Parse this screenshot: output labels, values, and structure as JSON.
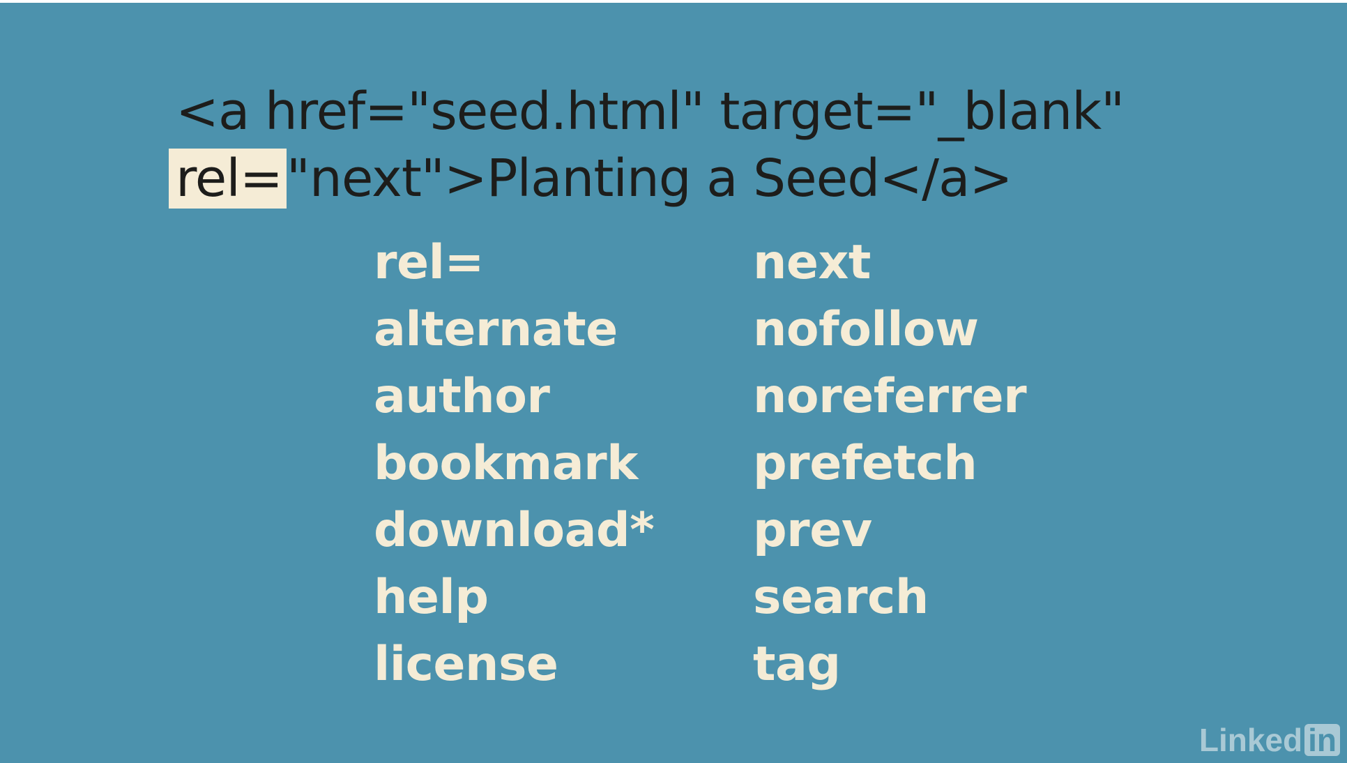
{
  "code": {
    "line1": "<a href=\"seed.html\" target=\"_blank\"",
    "line2_highlight": "rel=",
    "line2_rest": "\"next\">Planting a Seed</a>"
  },
  "left_column": [
    "rel=",
    "alternate",
    "author",
    "bookmark",
    "download*",
    "help",
    "license"
  ],
  "right_column": [
    "next",
    "nofollow",
    "noreferrer",
    "prefetch",
    "prev",
    "search",
    "tag"
  ],
  "watermark": {
    "text": "Linked",
    "badge": "in"
  },
  "colors": {
    "background": "#4c92ad",
    "text_cream": "#f5ecd6",
    "text_dark": "#1d1d1b"
  }
}
